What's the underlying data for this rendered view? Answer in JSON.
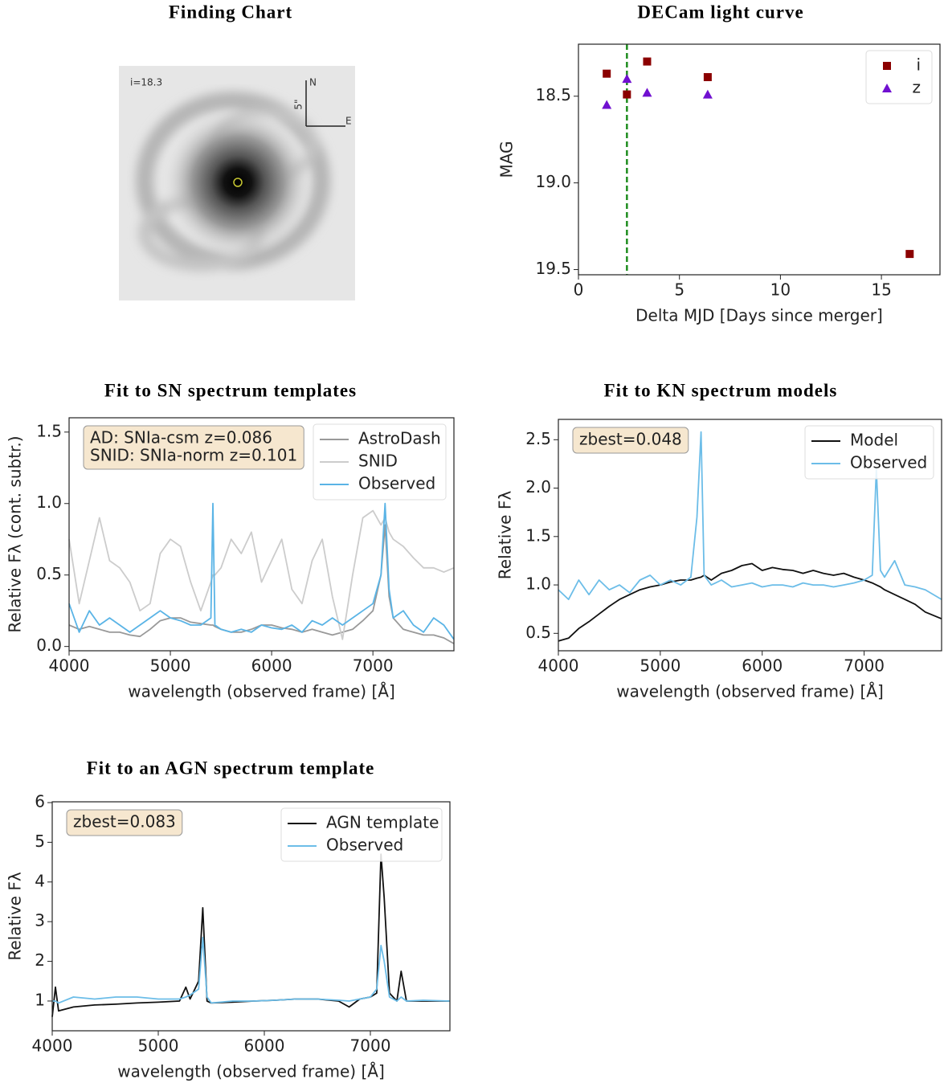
{
  "finding_chart": {
    "title": "Finding Chart",
    "magnitude_label": "i=18.3",
    "north": "N",
    "east": "E",
    "scale": "5\""
  },
  "chart_data": [
    {
      "type": "scatter",
      "title": "DECam light curve",
      "x_label": "Delta MJD [Days since merger]",
      "y_label": "MAG",
      "xlim": [
        0,
        17.9
      ],
      "ylim": [
        18.2,
        19.53
      ],
      "y_inverted": true,
      "xticks": [
        0,
        5,
        10,
        15
      ],
      "yticks": [
        18.5,
        {
          "value": 19,
          "label": "19.0"
        },
        19.5
      ],
      "legend": "upper right",
      "vline": {
        "x": 2.4,
        "color": "#1e8c1e"
      },
      "series": [
        {
          "name": "i",
          "color": "#8b0000",
          "marker": "square",
          "x": [
            1.4,
            2.4,
            3.4,
            6.4,
            16.4
          ],
          "values": [
            18.37,
            18.49,
            18.3,
            18.39,
            19.41
          ]
        },
        {
          "name": "z",
          "color": "#7010d0",
          "marker": "triangle",
          "x": [
            1.4,
            2.4,
            3.4,
            6.4
          ],
          "values": [
            18.55,
            18.4,
            18.48,
            18.49
          ]
        }
      ]
    },
    {
      "type": "line",
      "title": "Fit to SN spectrum templates",
      "x_label": "wavelength (observed frame) [Å]",
      "y_label": "Relative Fλ (cont. subtr.)",
      "xlim": [
        4000,
        7800
      ],
      "ylim": [
        -0.03,
        1.6
      ],
      "xticks": [
        4000,
        5000,
        6000,
        7000
      ],
      "yticks": [
        {
          "value": 0,
          "label": "0.0"
        },
        0.5,
        {
          "value": 1,
          "label": "1.0"
        },
        1.5
      ],
      "legend": "upper right",
      "annotation": [
        "AD:    SNIa-csm z=0.086",
        "SNID: SNIa-norm z=0.101"
      ],
      "x": [
        4000,
        4100,
        4200,
        4300,
        4400,
        4500,
        4600,
        4700,
        4800,
        4900,
        5000,
        5100,
        5200,
        5300,
        5400,
        5420,
        5440,
        5500,
        5600,
        5700,
        5800,
        5900,
        6000,
        6100,
        6200,
        6300,
        6400,
        6500,
        6600,
        6700,
        6800,
        6900,
        7000,
        7080,
        7120,
        7160,
        7200,
        7300,
        7400,
        7500,
        7600,
        7700,
        7800
      ],
      "series": [
        {
          "name": "AstroDash",
          "color": "#999999",
          "values": [
            0.15,
            0.12,
            0.14,
            0.12,
            0.1,
            0.1,
            0.08,
            0.07,
            0.12,
            0.18,
            0.2,
            0.2,
            0.17,
            0.16,
            0.15,
            0.15,
            0.14,
            0.12,
            0.1,
            0.1,
            0.12,
            0.15,
            0.15,
            0.13,
            0.12,
            0.1,
            0.12,
            0.1,
            0.08,
            0.1,
            0.12,
            0.18,
            0.25,
            0.5,
            0.85,
            0.35,
            0.2,
            0.12,
            0.1,
            0.08,
            0.08,
            0.06,
            0.02
          ]
        },
        {
          "name": "SNID",
          "color": "#cccccc",
          "values": [
            0.75,
            0.3,
            0.6,
            0.9,
            0.6,
            0.55,
            0.45,
            0.25,
            0.3,
            0.65,
            0.75,
            0.7,
            0.45,
            0.25,
            0.45,
            0.5,
            0.5,
            0.55,
            0.75,
            0.65,
            0.8,
            0.45,
            0.6,
            0.75,
            0.4,
            0.3,
            0.6,
            0.75,
            0.35,
            0.05,
            0.5,
            0.9,
            0.95,
            0.85,
            0.9,
            0.8,
            0.75,
            0.7,
            0.62,
            0.55,
            0.55,
            0.52,
            0.55
          ]
        },
        {
          "name": "Observed",
          "color": "#5ab4e6",
          "values": [
            0.3,
            0.1,
            0.25,
            0.15,
            0.2,
            0.15,
            0.1,
            0.15,
            0.2,
            0.25,
            0.2,
            0.18,
            0.15,
            0.15,
            0.2,
            1.0,
            0.15,
            0.12,
            0.1,
            0.12,
            0.1,
            0.15,
            0.13,
            0.12,
            0.15,
            0.1,
            0.18,
            0.15,
            0.2,
            0.15,
            0.2,
            0.25,
            0.3,
            0.5,
            1.0,
            0.4,
            0.2,
            0.25,
            0.15,
            0.1,
            0.2,
            0.15,
            0.05
          ]
        }
      ]
    },
    {
      "type": "line",
      "title": "Fit to KN spectrum models",
      "x_label": "wavelength (observed frame) [Å]",
      "y_label": "Relative Fλ",
      "xlim": [
        4000,
        7760
      ],
      "ylim": [
        0.32,
        2.71
      ],
      "xticks": [
        4000,
        5000,
        6000,
        7000
      ],
      "yticks": [
        0.5,
        {
          "value": 1,
          "label": "1.0"
        },
        1.5,
        {
          "value": 2,
          "label": "2.0"
        },
        2.5
      ],
      "legend": "upper right",
      "annotation": [
        "zbest=0.048"
      ],
      "x": [
        4000,
        4100,
        4200,
        4300,
        4400,
        4500,
        4600,
        4700,
        4800,
        4900,
        5000,
        5100,
        5200,
        5300,
        5360,
        5400,
        5430,
        5500,
        5600,
        5700,
        5800,
        5900,
        6000,
        6100,
        6200,
        6300,
        6400,
        6500,
        6600,
        6700,
        6800,
        6900,
        7000,
        7080,
        7120,
        7160,
        7200,
        7300,
        7400,
        7500,
        7600,
        7760
      ],
      "series": [
        {
          "name": "Model",
          "color": "#111111",
          "values": [
            0.42,
            0.45,
            0.55,
            0.62,
            0.7,
            0.78,
            0.85,
            0.9,
            0.95,
            0.98,
            1.0,
            1.03,
            1.05,
            1.05,
            1.07,
            1.08,
            1.1,
            1.05,
            1.12,
            1.15,
            1.2,
            1.22,
            1.15,
            1.18,
            1.16,
            1.15,
            1.12,
            1.15,
            1.12,
            1.1,
            1.12,
            1.08,
            1.05,
            1.02,
            1.0,
            0.98,
            0.95,
            0.9,
            0.85,
            0.8,
            0.72,
            0.65
          ]
        },
        {
          "name": "Observed",
          "color": "#6cbde8",
          "values": [
            0.95,
            0.85,
            1.05,
            0.9,
            1.05,
            0.95,
            1.0,
            0.92,
            1.05,
            1.1,
            1.0,
            1.05,
            1.0,
            1.08,
            1.7,
            2.58,
            1.1,
            1.0,
            1.05,
            0.98,
            1.0,
            1.02,
            0.98,
            1.0,
            1.0,
            0.98,
            1.02,
            1.0,
            1.0,
            0.98,
            1.0,
            1.02,
            1.05,
            1.1,
            2.2,
            1.15,
            1.08,
            1.25,
            1.0,
            0.98,
            0.95,
            0.85
          ]
        }
      ]
    },
    {
      "type": "line",
      "title": "Fit to an AGN spectrum template",
      "x_label": "wavelength (observed frame) [Å]",
      "y_label": "Relative Fλ",
      "xlim": [
        4000,
        7750
      ],
      "ylim": [
        0.25,
        6.02
      ],
      "xticks": [
        4000,
        5000,
        6000,
        7000
      ],
      "yticks": [
        1,
        2,
        3,
        4,
        5,
        6
      ],
      "legend": "upper right",
      "annotation": [
        "zbest=0.083"
      ],
      "x": [
        4000,
        4030,
        4060,
        4200,
        4400,
        4600,
        4800,
        5000,
        5200,
        5260,
        5300,
        5380,
        5420,
        5460,
        5500,
        5700,
        5900,
        6100,
        6300,
        6500,
        6700,
        6800,
        6900,
        7000,
        7060,
        7100,
        7130,
        7180,
        7250,
        7290,
        7340,
        7500,
        7750
      ],
      "series": [
        {
          "name": "AGN template",
          "color": "#111111",
          "values": [
            0.6,
            1.35,
            0.75,
            0.85,
            0.9,
            0.92,
            0.95,
            0.97,
            1.0,
            1.35,
            1.05,
            1.5,
            3.35,
            1.0,
            0.95,
            0.97,
            1.0,
            1.02,
            1.05,
            1.05,
            1.0,
            0.85,
            1.05,
            1.1,
            1.2,
            4.7,
            3.6,
            1.2,
            1.0,
            1.75,
            1.0,
            1.0,
            1.0
          ]
        },
        {
          "name": "Observed",
          "color": "#6cbde8",
          "values": [
            1.0,
            1.0,
            0.95,
            1.1,
            1.05,
            1.1,
            1.1,
            1.05,
            1.05,
            1.1,
            1.15,
            1.3,
            2.6,
            1.1,
            0.95,
            1.0,
            1.0,
            1.02,
            1.05,
            1.05,
            1.02,
            1.0,
            1.05,
            1.1,
            1.3,
            2.4,
            2.0,
            1.1,
            1.0,
            1.1,
            1.0,
            1.02,
            1.0
          ]
        }
      ]
    }
  ]
}
